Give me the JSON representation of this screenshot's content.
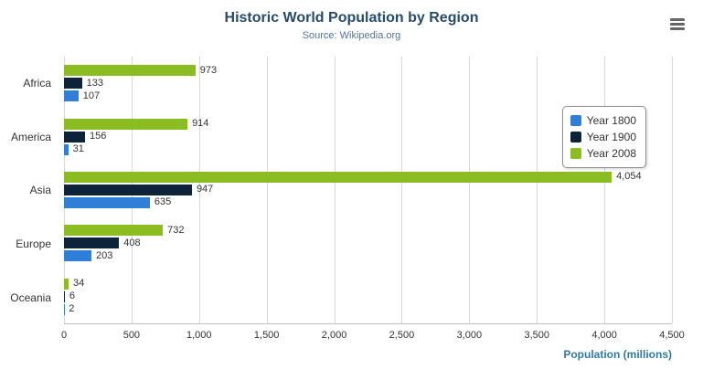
{
  "header": {
    "title": "Historic World Population by Region",
    "subtitle": "Source: Wikipedia.org"
  },
  "icons": {
    "menu": "hamburger-menu-icon"
  },
  "colors": {
    "title": "#274b6d",
    "subtitle": "#4d759e",
    "axis_title": "#2f7ba6",
    "grid": "#d8d8d8",
    "axis_line": "#c0c0c0"
  },
  "chart_data": {
    "type": "bar",
    "title": "Historic World Population by Region",
    "subtitle": "Source: Wikipedia.org",
    "categories": [
      "Africa",
      "America",
      "Asia",
      "Europe",
      "Oceania"
    ],
    "series": [
      {
        "name": "Year 1800",
        "color": "#2f7ed8",
        "values": [
          107,
          31,
          635,
          203,
          2
        ]
      },
      {
        "name": "Year 1900",
        "color": "#0d233a",
        "values": [
          133,
          156,
          947,
          408,
          6
        ]
      },
      {
        "name": "Year 2008",
        "color": "#8bbc21",
        "values": [
          973,
          914,
          4054,
          732,
          34
        ]
      }
    ],
    "bar_order_top_to_bottom": [
      "Year 2008",
      "Year 1900",
      "Year 1800"
    ],
    "xlabel": "Population (millions)",
    "ylabel": "",
    "xlim": [
      0,
      4500
    ],
    "xticks": [
      0,
      500,
      1000,
      1500,
      2000,
      2500,
      3000,
      3500,
      4000,
      4500
    ],
    "tick_labels": [
      "0",
      "500",
      "1,000",
      "1,500",
      "2,000",
      "2,500",
      "3,000",
      "3,500",
      "4,000",
      "4,500"
    ],
    "grid": true,
    "legend_position": "right"
  }
}
